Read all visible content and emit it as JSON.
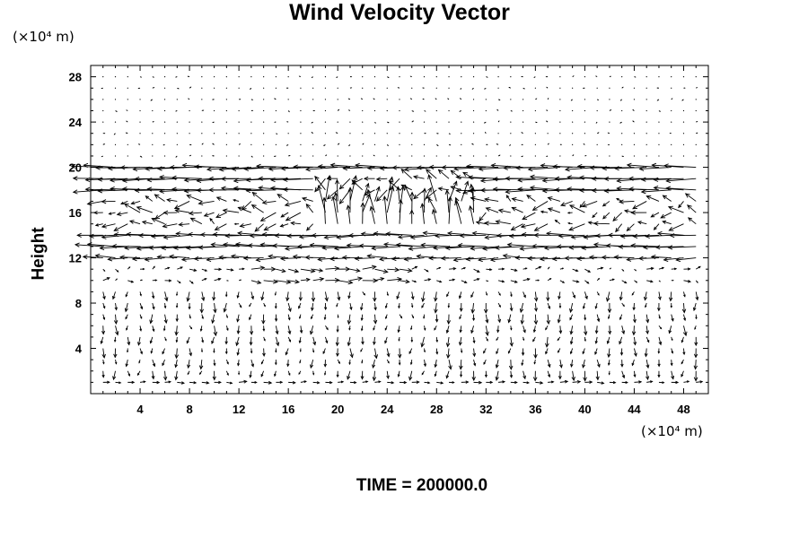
{
  "chart_data": {
    "type": "vector_field",
    "title": "Wind Velocity Vector",
    "ylabel": "Height",
    "x_unit": "(×10⁴ m)",
    "y_unit": "(×10⁴ m)",
    "xlim": [
      0,
      50
    ],
    "ylim": [
      0,
      29
    ],
    "x_ticks": [
      4,
      8,
      12,
      16,
      20,
      24,
      28,
      32,
      36,
      40,
      44,
      48
    ],
    "y_ticks": [
      4,
      8,
      12,
      16,
      20,
      24,
      28
    ],
    "grid": false,
    "strong_westward_layers_y": [
      20,
      19,
      18,
      14,
      13,
      12
    ]
  },
  "footer": {
    "time_label": "TIME = 200000.0"
  }
}
